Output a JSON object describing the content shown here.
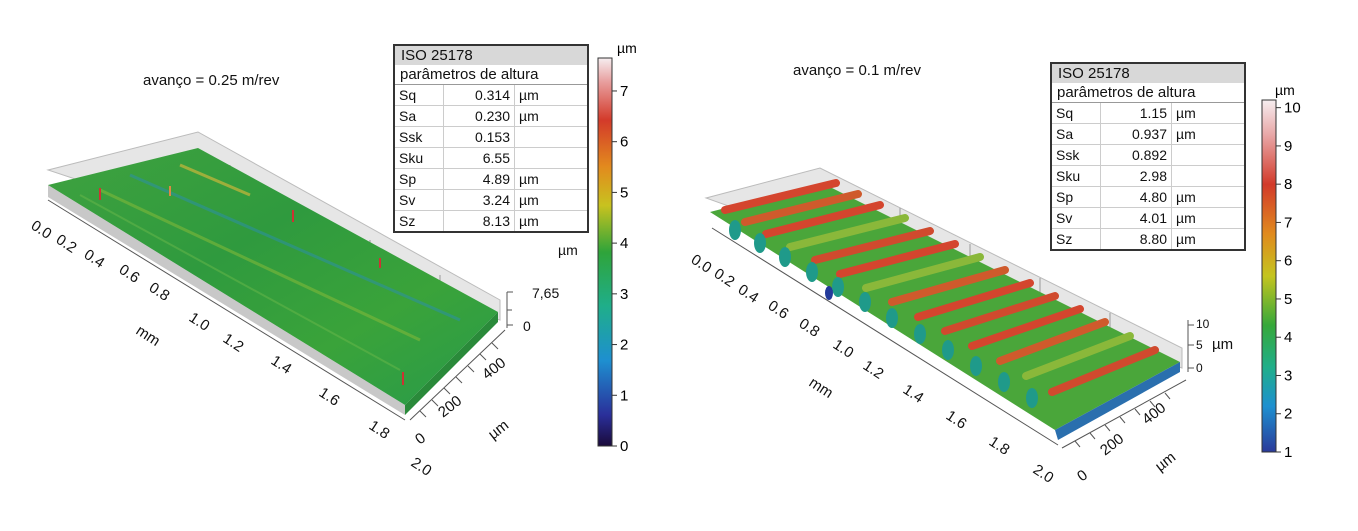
{
  "chart_data": [
    {
      "type": "surface3d",
      "title": "avanço = 0.25 m/rev",
      "x_axis": {
        "label": "mm",
        "ticks": [
          "0.0",
          "0.2",
          "0.4",
          "0.6",
          "0.8",
          "1.0",
          "1.2",
          "1.4",
          "1.6",
          "1.8",
          "2.0"
        ]
      },
      "y_axis": {
        "label": "µm",
        "ticks": [
          "0",
          "200",
          "400"
        ]
      },
      "z_axis": {
        "label": "µm",
        "ticks": [
          "7,65",
          "0"
        ]
      },
      "colorbar": {
        "unit": "µm",
        "ticks": [
          "0",
          "1",
          "2",
          "3",
          "4",
          "5",
          "6",
          "7"
        ],
        "range": [
          0,
          7.65
        ]
      },
      "table": {
        "header": "ISO 25178",
        "subheader": "parâmetros de altura",
        "rows": [
          {
            "param": "Sq",
            "value": "0.314",
            "unit": "µm"
          },
          {
            "param": "Sa",
            "value": "0.230",
            "unit": "µm"
          },
          {
            "param": "Ssk",
            "value": "0.153",
            "unit": ""
          },
          {
            "param": "Sku",
            "value": "6.55",
            "unit": ""
          },
          {
            "param": "Sp",
            "value": "4.89",
            "unit": "µm"
          },
          {
            "param": "Sv",
            "value": "3.24",
            "unit": "µm"
          },
          {
            "param": "Sz",
            "value": "8.13",
            "unit": "µm"
          }
        ]
      },
      "extra_unit_label": "µm"
    },
    {
      "type": "surface3d",
      "title": "avanço = 0.1 m/rev",
      "x_axis": {
        "label": "mm",
        "ticks": [
          "0.0",
          "0.2",
          "0.4",
          "0.6",
          "0.8",
          "1.0",
          "1.2",
          "1.4",
          "1.6",
          "1.8",
          "2.0"
        ]
      },
      "y_axis": {
        "label": "µm",
        "ticks": [
          "0",
          "200",
          "400"
        ]
      },
      "z_axis": {
        "label": "µm",
        "ticks": [
          "10",
          "5",
          "0"
        ]
      },
      "colorbar": {
        "unit": "µm",
        "ticks": [
          "1",
          "2",
          "3",
          "4",
          "5",
          "6",
          "7",
          "8",
          "9",
          "10"
        ],
        "range": [
          1,
          10.2
        ]
      },
      "table": {
        "header": "ISO 25178",
        "subheader": "parâmetros de altura",
        "rows": [
          {
            "param": "Sq",
            "value": "1.15",
            "unit": "µm"
          },
          {
            "param": "Sa",
            "value": "0.937",
            "unit": "µm"
          },
          {
            "param": "Ssk",
            "value": "0.892",
            "unit": ""
          },
          {
            "param": "Sku",
            "value": "2.98",
            "unit": ""
          },
          {
            "param": "Sp",
            "value": "4.80",
            "unit": "µm"
          },
          {
            "param": "Sv",
            "value": "4.01",
            "unit": "µm"
          },
          {
            "param": "Sz",
            "value": "8.80",
            "unit": "µm"
          }
        ]
      }
    }
  ]
}
